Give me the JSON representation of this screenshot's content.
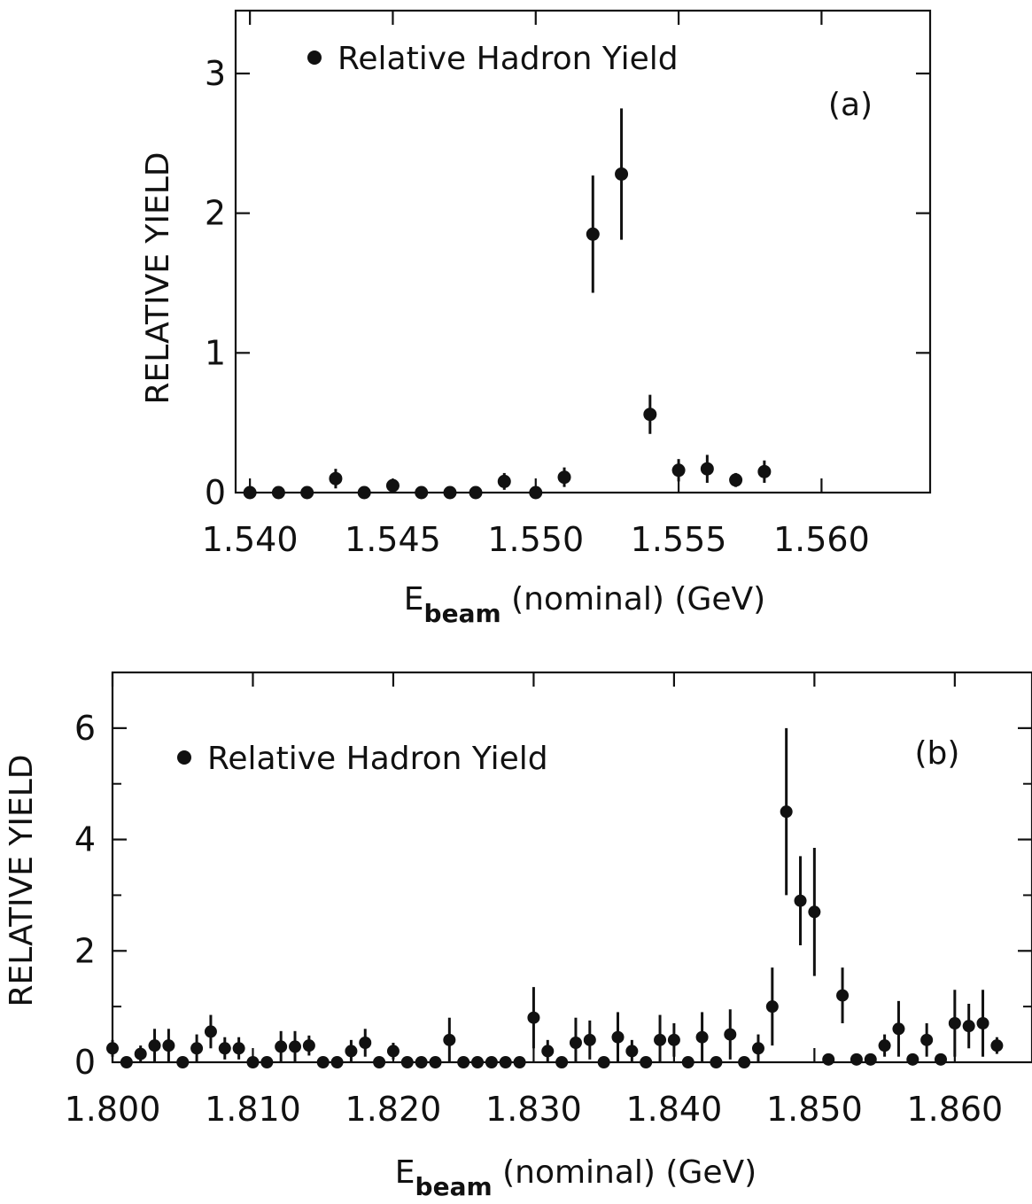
{
  "chart_data": [
    {
      "type": "scatter",
      "panel_label": "(a)",
      "legend": [
        {
          "name": "Relative Hadron Yield",
          "marker": "filled-circle"
        }
      ],
      "xlabel": {
        "main": "E",
        "subscript": "beam",
        "rest": " (nominal) (GeV)"
      },
      "ylabel": "RELATIVE YIELD",
      "xlim": [
        1.5395,
        1.5638
      ],
      "ylim": [
        0,
        3.45
      ],
      "xticks": [
        1.54,
        1.545,
        1.55,
        1.555,
        1.56
      ],
      "xtick_labels": [
        "1.540",
        "1.545",
        "1.550",
        "1.555",
        "1.560"
      ],
      "yticks": [
        0,
        1,
        2,
        3
      ],
      "ytick_labels": [
        "0",
        "1",
        "2",
        "3"
      ],
      "series": [
        {
          "name": "Relative Hadron Yield",
          "x": [
            1.54,
            1.541,
            1.542,
            1.543,
            1.544,
            1.545,
            1.546,
            1.547,
            1.5479,
            1.5489,
            1.55,
            1.551,
            1.552,
            1.553,
            1.554,
            1.555,
            1.556,
            1.557,
            1.558
          ],
          "y": [
            0.0,
            0.0,
            0.0,
            0.1,
            0.0,
            0.05,
            0.0,
            0.0,
            0.0,
            0.08,
            0.0,
            0.11,
            1.85,
            2.28,
            0.56,
            0.16,
            0.17,
            0.09,
            0.15
          ],
          "yerr": [
            0.0,
            0.0,
            0.0,
            0.07,
            0.0,
            0.04,
            0.0,
            0.0,
            0.0,
            0.06,
            0.0,
            0.07,
            0.42,
            0.47,
            0.14,
            0.08,
            0.1,
            0.05,
            0.08
          ]
        }
      ]
    },
    {
      "type": "scatter",
      "panel_label": "(b)",
      "legend": [
        {
          "name": "Relative Hadron Yield",
          "marker": "filled-circle"
        }
      ],
      "xlabel": {
        "main": "E",
        "subscript": "beam",
        "rest": " (nominal) (GeV)"
      },
      "ylabel": "RELATIVE YIELD",
      "xlim": [
        1.8,
        1.8655
      ],
      "ylim": [
        0,
        7.0
      ],
      "xticks": [
        1.8,
        1.81,
        1.82,
        1.83,
        1.84,
        1.85,
        1.86
      ],
      "xtick_labels": [
        "1.800",
        "1.810",
        "1.820",
        "1.830",
        "1.840",
        "1.850",
        "1.860"
      ],
      "yticks": [
        0,
        2,
        4,
        6
      ],
      "ytick_labels": [
        "0",
        "2",
        "4",
        "6"
      ],
      "series": [
        {
          "name": "Relative Hadron Yield",
          "x": [
            1.8,
            1.801,
            1.802,
            1.803,
            1.804,
            1.805,
            1.806,
            1.807,
            1.808,
            1.809,
            1.81,
            1.811,
            1.812,
            1.813,
            1.814,
            1.815,
            1.816,
            1.817,
            1.818,
            1.819,
            1.82,
            1.821,
            1.822,
            1.823,
            1.824,
            1.825,
            1.826,
            1.827,
            1.828,
            1.829,
            1.83,
            1.831,
            1.832,
            1.833,
            1.834,
            1.835,
            1.836,
            1.837,
            1.838,
            1.839,
            1.84,
            1.841,
            1.842,
            1.843,
            1.844,
            1.845,
            1.846,
            1.847,
            1.848,
            1.849,
            1.85,
            1.851,
            1.852,
            1.853,
            1.854,
            1.855,
            1.856,
            1.857,
            1.858,
            1.859,
            1.86,
            1.861,
            1.862,
            1.863
          ],
          "y": [
            0.25,
            0.0,
            0.15,
            0.3,
            0.3,
            0.0,
            0.25,
            0.55,
            0.25,
            0.25,
            0.0,
            0.0,
            0.28,
            0.28,
            0.3,
            0.0,
            0.0,
            0.2,
            0.35,
            0.0,
            0.2,
            0.0,
            0.0,
            0.0,
            0.4,
            0.0,
            0.0,
            0.0,
            0.0,
            0.0,
            0.8,
            0.2,
            0.0,
            0.35,
            0.4,
            0.0,
            0.45,
            0.2,
            0.0,
            0.4,
            0.4,
            0.0,
            0.45,
            0.0,
            0.5,
            0.0,
            0.25,
            1.0,
            4.5,
            2.9,
            2.7,
            0.05,
            1.2,
            0.05,
            0.05,
            0.3,
            0.6,
            0.05,
            0.4,
            0.05,
            0.7,
            0.65,
            0.7,
            0.3
          ],
          "yerr": [
            0.15,
            0.0,
            0.15,
            0.3,
            0.3,
            0.0,
            0.25,
            0.3,
            0.2,
            0.2,
            0.0,
            0.0,
            0.28,
            0.28,
            0.18,
            0.0,
            0.0,
            0.2,
            0.25,
            0.0,
            0.15,
            0.0,
            0.0,
            0.0,
            0.4,
            0.0,
            0.0,
            0.0,
            0.0,
            0.0,
            0.55,
            0.2,
            0.0,
            0.45,
            0.35,
            0.0,
            0.45,
            0.2,
            0.0,
            0.45,
            0.3,
            0.0,
            0.45,
            0.0,
            0.45,
            0.0,
            0.25,
            0.7,
            1.5,
            0.8,
            1.15,
            0.0,
            0.5,
            0.0,
            0.0,
            0.2,
            0.5,
            0.0,
            0.3,
            0.0,
            0.6,
            0.4,
            0.6,
            0.15
          ]
        }
      ]
    }
  ]
}
